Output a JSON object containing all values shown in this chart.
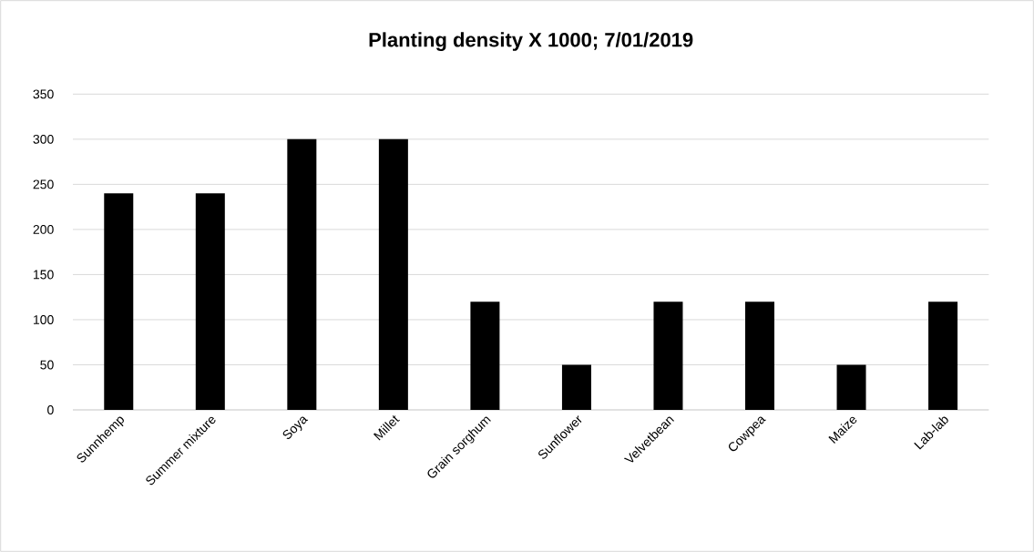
{
  "chart_data": {
    "type": "bar",
    "title": "**Planting density X 1000; 7/01/2019**",
    "categories": [
      "Sunnhemp",
      "Summer mixture",
      "Soya",
      "Millet",
      "Grain sorghum",
      "Sunflower",
      "Velvetbean",
      "Cowpea",
      "Maize",
      "Lab-lab"
    ],
    "values": [
      240,
      240,
      300,
      300,
      120,
      50,
      120,
      120,
      50,
      120
    ],
    "color": "#000000",
    "ylim": [
      0,
      350
    ],
    "yticks": [
      0,
      50,
      100,
      150,
      200,
      250,
      300,
      350
    ],
    "grid": "y"
  }
}
